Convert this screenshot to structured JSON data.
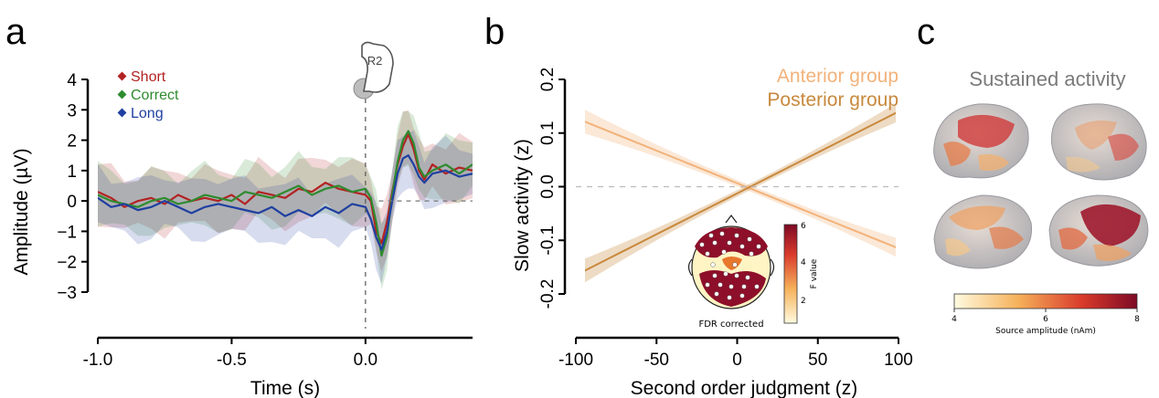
{
  "panel_labels": {
    "a": "a",
    "b": "b",
    "c": "c"
  },
  "button_label": "R2",
  "chart_data": [
    {
      "type": "line",
      "panel": "a",
      "xlabel": "Time (s)",
      "ylabel": "Amplitude (µV)",
      "xlim": [
        -1.0,
        0.4
      ],
      "ylim": [
        -3.2,
        4.2
      ],
      "xticks": [
        -1.0,
        -0.5,
        0.0
      ],
      "xtick_labels": [
        "-1.0",
        "-0.5",
        "0.0"
      ],
      "yticks": [
        4,
        3,
        2,
        1,
        0,
        -1,
        -2,
        -3
      ],
      "ytick_labels": [
        "4",
        "3",
        "2",
        "1",
        "0",
        "−1",
        "−2",
        "−3"
      ],
      "legend_position": "top-left",
      "x": [
        -1.0,
        -0.95,
        -0.9,
        -0.85,
        -0.8,
        -0.75,
        -0.7,
        -0.65,
        -0.6,
        -0.55,
        -0.5,
        -0.45,
        -0.4,
        -0.35,
        -0.3,
        -0.25,
        -0.2,
        -0.15,
        -0.1,
        -0.05,
        0.0,
        0.02,
        0.04,
        0.06,
        0.08,
        0.1,
        0.12,
        0.14,
        0.16,
        0.18,
        0.2,
        0.22,
        0.25,
        0.3,
        0.35,
        0.4
      ],
      "series": [
        {
          "name": "Short",
          "color": "#b22222",
          "values": [
            0.3,
            0.1,
            -0.2,
            0.0,
            0.1,
            -0.1,
            0.2,
            0.0,
            0.1,
            0.0,
            0.2,
            -0.1,
            0.3,
            0.2,
            0.1,
            0.4,
            0.3,
            0.6,
            0.4,
            0.3,
            0.2,
            0.0,
            -1.0,
            -1.4,
            -0.7,
            0.3,
            1.2,
            1.8,
            2.2,
            1.7,
            1.0,
            0.7,
            1.2,
            0.9,
            1.1,
            1.0
          ]
        },
        {
          "name": "Correct",
          "color": "#2e8b2e",
          "values": [
            0.2,
            0.0,
            -0.1,
            -0.2,
            0.0,
            0.1,
            -0.1,
            0.0,
            0.2,
            0.1,
            0.0,
            0.3,
            0.2,
            0.1,
            0.3,
            0.5,
            0.2,
            0.4,
            0.5,
            0.3,
            0.4,
            0.1,
            -0.7,
            -1.8,
            -1.2,
            0.2,
            1.3,
            2.0,
            2.3,
            1.9,
            1.1,
            0.8,
            1.0,
            1.2,
            0.9,
            1.2
          ]
        },
        {
          "name": "Long",
          "color": "#1f3fa0",
          "values": [
            0.1,
            -0.2,
            -0.1,
            -0.3,
            -0.2,
            0.0,
            -0.2,
            -0.4,
            -0.2,
            -0.1,
            -0.2,
            -0.3,
            -0.4,
            -0.2,
            -0.5,
            -0.3,
            -0.5,
            -0.2,
            -0.4,
            -0.1,
            -0.2,
            -0.6,
            -1.2,
            -1.6,
            -1.0,
            0.0,
            0.9,
            1.4,
            1.5,
            1.2,
            0.8,
            0.6,
            0.9,
            1.0,
            0.8,
            0.9
          ]
        }
      ]
    },
    {
      "type": "line",
      "panel": "b",
      "xlabel": "Second order judgment (z)",
      "ylabel": "Slow activity (z)",
      "xlim": [
        -100,
        100
      ],
      "ylim": [
        -0.22,
        0.22
      ],
      "xticks": [
        -100,
        -50,
        0,
        50,
        100
      ],
      "xtick_labels": [
        "-100",
        "-50",
        "0",
        "50",
        "100"
      ],
      "yticks": [
        0.2,
        0.1,
        0.0,
        -0.1,
        -0.2
      ],
      "ytick_labels": [
        "0.2",
        "0.1",
        "0.0",
        "-0.1",
        "-0.2"
      ],
      "legend_position": "top-right",
      "series": [
        {
          "name": "Anterior group",
          "color": "#f2b27a",
          "x": [
            -100,
            100
          ],
          "values": [
            0.128,
            -0.115
          ]
        },
        {
          "name": "Posterior group",
          "color": "#c8893d",
          "x": [
            -100,
            100
          ],
          "values": [
            -0.165,
            0.14
          ]
        }
      ],
      "inset": {
        "label": "FDR corrected",
        "colorbar_label": "F value",
        "colorbar_ticks": [
          "6",
          "4",
          "2"
        ]
      }
    },
    {
      "type": "heatmap",
      "panel": "c",
      "title": "Sustained activity",
      "colorbar_label": "Source amplitude (nAm)",
      "colorbar_ticks": [
        "4",
        "6",
        "8"
      ],
      "colors": {
        "low": "#fff8c8",
        "mid": "#e8522c",
        "high": "#8b0a2a"
      }
    }
  ]
}
